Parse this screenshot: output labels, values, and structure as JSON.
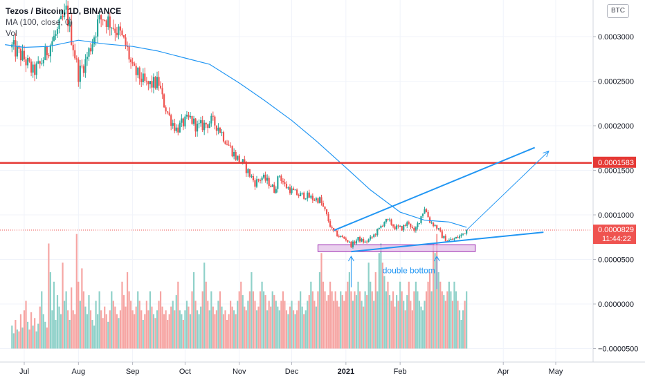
{
  "legend": {
    "symbol": "Tezos / Bitcoin, 1D, BINANCE",
    "ma": "MA (100, close, 0)",
    "vol": "Vol"
  },
  "currency_badge": "BTC",
  "chart_data": {
    "type": "candlestick",
    "y_ticks": [
      "0.0003000",
      "0.0002500",
      "0.0002000",
      "0.0001500",
      "0.0001000",
      "0.0000500",
      "0.0000000",
      "−0.0000500"
    ],
    "y_tick_values": [
      0.0003,
      0.00025,
      0.0002,
      0.00015,
      0.0001,
      5e-05,
      0.0,
      -5e-05
    ],
    "x_ticks": [
      {
        "label": "Jul",
        "date": "2020-07-01",
        "bold": false
      },
      {
        "label": "Aug",
        "date": "2020-08-01",
        "bold": false
      },
      {
        "label": "Sep",
        "date": "2020-09-01",
        "bold": false
      },
      {
        "label": "Oct",
        "date": "2020-10-01",
        "bold": false
      },
      {
        "label": "Nov",
        "date": "2020-11-01",
        "bold": false
      },
      {
        "label": "Dec",
        "date": "2020-12-01",
        "bold": false
      },
      {
        "label": "2021",
        "date": "2021-01-01",
        "bold": true
      },
      {
        "label": "Feb",
        "date": "2021-02-01",
        "bold": false
      },
      {
        "label": "Apr",
        "date": "2021-04-01",
        "bold": false
      },
      {
        "label": "May",
        "date": "2021-05-01",
        "bold": false
      }
    ],
    "price_path": [
      [
        "2020-06-24",
        0.000288
      ],
      [
        "2020-07-01",
        0.000275
      ],
      [
        "2020-07-06",
        0.00026
      ],
      [
        "2020-07-10",
        0.000268
      ],
      [
        "2020-07-16",
        0.000292
      ],
      [
        "2020-07-20",
        0.000305
      ],
      [
        "2020-07-25",
        0.000328
      ],
      [
        "2020-07-29",
        0.00029
      ],
      [
        "2020-08-01",
        0.000258
      ],
      [
        "2020-08-05",
        0.000272
      ],
      [
        "2020-08-09",
        0.000295
      ],
      [
        "2020-08-12",
        0.000315
      ],
      [
        "2020-08-15",
        0.000322
      ],
      [
        "2020-08-18",
        0.000318
      ],
      [
        "2020-08-21",
        0.000312
      ],
      [
        "2020-08-25",
        0.000302
      ],
      [
        "2020-08-29",
        0.000285
      ],
      [
        "2020-09-01",
        0.000262
      ],
      [
        "2020-09-05",
        0.000255
      ],
      [
        "2020-09-09",
        0.000245
      ],
      [
        "2020-09-13",
        0.000247
      ],
      [
        "2020-09-16",
        0.000248
      ],
      [
        "2020-09-18",
        0.00023
      ],
      [
        "2020-09-22",
        0.00021
      ],
      [
        "2020-09-26",
        0.000196
      ],
      [
        "2020-09-30",
        0.000203
      ],
      [
        "2020-10-04",
        0.000208
      ],
      [
        "2020-10-08",
        0.000198
      ],
      [
        "2020-10-12",
        0.000201
      ],
      [
        "2020-10-16",
        0.000205
      ],
      [
        "2020-10-20",
        0.000199
      ],
      [
        "2020-10-23",
        0.000188
      ],
      [
        "2020-10-26",
        0.000178
      ],
      [
        "2020-10-30",
        0.000165
      ],
      [
        "2020-11-03",
        0.000158
      ],
      [
        "2020-11-07",
        0.000145
      ],
      [
        "2020-11-10",
        0.000136
      ],
      [
        "2020-11-14",
        0.000142
      ],
      [
        "2020-11-18",
        0.000136
      ],
      [
        "2020-11-21",
        0.000128
      ],
      [
        "2020-11-24",
        0.000145
      ],
      [
        "2020-11-27",
        0.000133
      ],
      [
        "2020-12-01",
        0.000127
      ],
      [
        "2020-12-05",
        0.000122
      ],
      [
        "2020-12-09",
        0.000122
      ],
      [
        "2020-12-13",
        0.000118
      ],
      [
        "2020-12-17",
        0.000117
      ],
      [
        "2020-12-20",
        0.000104
      ],
      [
        "2020-12-24",
        8.3e-05
      ],
      [
        "2020-12-28",
        7.6e-05
      ],
      [
        "2021-01-01",
        7.3e-05
      ],
      [
        "2021-01-04",
        6.6e-05
      ],
      [
        "2021-01-08",
        7.3e-05
      ],
      [
        "2021-01-12",
        6.9e-05
      ],
      [
        "2021-01-16",
        7.5e-05
      ],
      [
        "2021-01-20",
        8.4e-05
      ],
      [
        "2021-01-23",
        9.3e-05
      ],
      [
        "2021-01-26",
        9.2e-05
      ],
      [
        "2021-01-29",
        8.6e-05
      ],
      [
        "2021-02-02",
        8.5e-05
      ],
      [
        "2021-02-06",
        9.2e-05
      ],
      [
        "2021-02-09",
        8e-05
      ],
      [
        "2021-02-12",
        9.4e-05
      ],
      [
        "2021-02-15",
        0.000108
      ],
      [
        "2021-02-18",
        9.3e-05
      ],
      [
        "2021-02-22",
        8.6e-05
      ],
      [
        "2021-02-25",
        7.6e-05
      ],
      [
        "2021-02-28",
        7.1e-05
      ],
      [
        "2021-03-04",
        7.3e-05
      ],
      [
        "2021-03-08",
        7.7e-05
      ],
      [
        "2021-03-11",
        8.3e-05
      ]
    ],
    "ma_path": [
      [
        "2020-06-20",
        0.000291
      ],
      [
        "2020-07-01",
        0.000288
      ],
      [
        "2020-07-15",
        0.000289
      ],
      [
        "2020-08-01",
        0.000296
      ],
      [
        "2020-08-15",
        0.000292
      ],
      [
        "2020-09-01",
        0.000289
      ],
      [
        "2020-09-15",
        0.000284
      ],
      [
        "2020-10-01",
        0.000276
      ],
      [
        "2020-10-15",
        0.000269
      ],
      [
        "2020-11-01",
        0.000248
      ],
      [
        "2020-11-15",
        0.000229
      ],
      [
        "2020-12-01",
        0.000206
      ],
      [
        "2020-12-15",
        0.000183
      ],
      [
        "2021-01-01",
        0.000153
      ],
      [
        "2021-01-15",
        0.000128
      ],
      [
        "2021-02-01",
        0.000103
      ],
      [
        "2021-02-15",
        9.4e-05
      ],
      [
        "2021-03-01",
        9.2e-05
      ],
      [
        "2021-03-11",
        8.6e-05
      ]
    ],
    "volume": {
      "scale_max": 7.5e-05,
      "base_value": -5e-05,
      "values": [
        0.12,
        0.08,
        0.15,
        0.1,
        0.09,
        0.18,
        0.11,
        0.2,
        0.25,
        0.14,
        0.1,
        0.19,
        0.12,
        0.16,
        0.09,
        0.13,
        0.22,
        0.3,
        0.18,
        0.14,
        0.11,
        0.55,
        0.4,
        0.2,
        0.35,
        0.15,
        0.28,
        0.22,
        0.18,
        0.45,
        0.25,
        0.3,
        0.2,
        0.15,
        0.32,
        0.2,
        0.18,
        0.6,
        0.35,
        0.25,
        0.42,
        0.3,
        0.22,
        0.18,
        0.28,
        0.2,
        0.15,
        0.12,
        0.25,
        0.18,
        0.3,
        0.2,
        0.16,
        0.22,
        0.18,
        0.14,
        0.2,
        0.3,
        0.25,
        0.22,
        0.18,
        0.16,
        0.2,
        0.35,
        0.28,
        0.22,
        0.4,
        0.3,
        0.25,
        0.2,
        0.18,
        0.22,
        0.3,
        0.25,
        0.2,
        0.15,
        0.18,
        0.25,
        0.2,
        0.3,
        0.22,
        0.18,
        0.16,
        0.2,
        0.25,
        0.3,
        0.22,
        0.18,
        0.2,
        0.15,
        0.18,
        0.22,
        0.25,
        0.2,
        0.28,
        0.35,
        0.2,
        0.18,
        0.15,
        0.2,
        0.25,
        0.22,
        0.18,
        0.3,
        0.4,
        0.25,
        0.2,
        0.18,
        0.22,
        0.3,
        0.45,
        0.35,
        0.25,
        0.2,
        0.3,
        0.22,
        0.18,
        0.2,
        0.25,
        0.3,
        0.22,
        0.18,
        0.2,
        0.15,
        0.18,
        0.25,
        0.22,
        0.2,
        0.18,
        0.25,
        0.3,
        0.35,
        0.28,
        0.22,
        0.2,
        0.25,
        0.3,
        0.4,
        0.3,
        0.25,
        0.2,
        0.22,
        0.3,
        0.35,
        0.3,
        0.28,
        0.2,
        0.25,
        0.22,
        0.3,
        0.28,
        0.25,
        0.22,
        0.2,
        0.25,
        0.3,
        0.25,
        0.2,
        0.18,
        0.22,
        0.25,
        0.2,
        0.18,
        0.2,
        0.25,
        0.3,
        0.22,
        0.18,
        0.2,
        0.25,
        0.28,
        0.35,
        0.3,
        0.25,
        0.22,
        0.3,
        0.4,
        0.5,
        0.35,
        0.3,
        0.25,
        0.28,
        0.35,
        0.3,
        0.25,
        0.3,
        0.25,
        0.22,
        0.3,
        0.28,
        0.25,
        0.3,
        0.35,
        0.4,
        0.3,
        0.25,
        0.3,
        0.28,
        0.35,
        0.3,
        0.25,
        0.22,
        0.3,
        0.28,
        0.45,
        0.35,
        0.3,
        0.25,
        0.4,
        0.3,
        0.5,
        0.55,
        0.45,
        0.38,
        0.3,
        0.35,
        0.28,
        0.25,
        0.3,
        0.22,
        0.28,
        0.25,
        0.35,
        0.3,
        0.25,
        0.2,
        0.28,
        0.35,
        0.25,
        0.2,
        0.3,
        0.35,
        0.3,
        0.25,
        0.22,
        0.2,
        0.25,
        0.3,
        0.35,
        0.4,
        0.3,
        0.55,
        0.5,
        0.6,
        0.4,
        0.35,
        0.3,
        0.28,
        0.25,
        0.3,
        0.35,
        0.3,
        0.25,
        0.35,
        0.3,
        0.25,
        0.2,
        0.15,
        0.2,
        0.25,
        0.3,
        0.35,
        0.3,
        0.2,
        0.18,
        0.25,
        0.45,
        0.3
      ]
    },
    "resistance_level": 0.0001583,
    "current_price": 8.29e-05,
    "current_price_label": "0.0000829",
    "resistance_label": "0.0001583",
    "countdown": "11:44:22",
    "support_zone": {
      "x_start": "2020-12-16",
      "x_end": "2021-03-16",
      "y_low": 5.88e-05,
      "y_high": 6.65e-05
    },
    "trendlines": [
      {
        "name": "upper-channel-line",
        "from": [
          "2020-12-25",
          8.25e-05
        ],
        "to": [
          "2021-04-19",
          0.0001755
        ],
        "color": "#2196f3"
      },
      {
        "name": "lower-channel-line",
        "from": [
          "2021-01-04",
          5.88e-05
        ],
        "to": [
          "2021-04-24",
          8.05e-05
        ],
        "color": "#2196f3"
      },
      {
        "name": "projection-arrow",
        "from": [
          "2021-03-11",
          8.29e-05
        ],
        "to": [
          "2021-04-27",
          0.0001715
        ],
        "color": "#2196f3"
      }
    ],
    "bottom_arrows": [
      {
        "date": "2021-01-04",
        "y_from": 1.88e-05,
        "y_to": 5.35e-05
      },
      {
        "date": "2021-02-22",
        "y_from": 1.68e-05,
        "y_to": 5.35e-05
      }
    ],
    "annotation": {
      "text": "double bottom",
      "date": "2021-02-06",
      "value": 3.45e-05
    },
    "colors": {
      "up": "#26a69a",
      "down": "#ef5350",
      "volume_up": "#8fd1c9",
      "volume_down": "#f6a5a3",
      "ma": "#2196f3",
      "resistance": "#e53935",
      "support_fill": "#e1bee7",
      "support_stroke": "#9c27b0",
      "current_dotted": "#ef5350",
      "trendline": "#2196f3"
    }
  }
}
